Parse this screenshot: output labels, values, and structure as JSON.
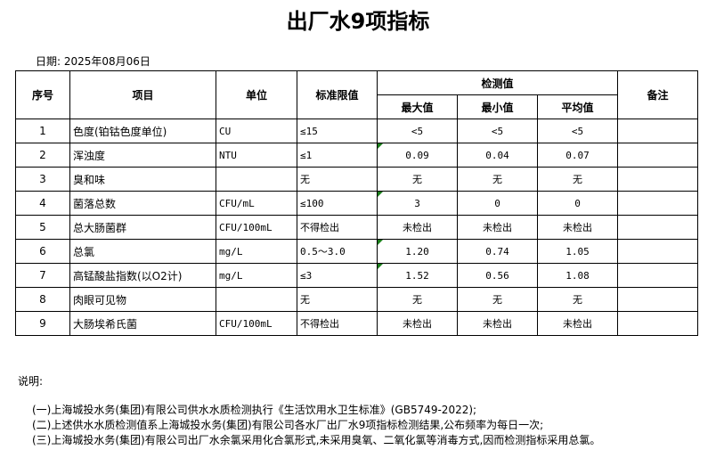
{
  "title": "出厂水9项指标",
  "date": "日期: 2025年08月06日",
  "headers": {
    "no": "序号",
    "item": "项目",
    "unit": "单位",
    "limit": "标准限值",
    "detect": "检测值",
    "max": "最大值",
    "min": "最小值",
    "avg": "平均值",
    "remark": "备注"
  },
  "rows": [
    {
      "no": "1",
      "item": "色度(铂钴色度单位)",
      "unit": "CU",
      "limit": "≤15",
      "max": "<5",
      "min": "<5",
      "avg": "<5",
      "flag": false
    },
    {
      "no": "2",
      "item": "浑浊度",
      "unit": "NTU",
      "limit": "≤1",
      "max": "0.09",
      "min": "0.04",
      "avg": "0.07",
      "flag": true
    },
    {
      "no": "3",
      "item": "臭和味",
      "unit": "",
      "limit": "无",
      "max": "无",
      "min": "无",
      "avg": "无",
      "flag": false
    },
    {
      "no": "4",
      "item": "菌落总数",
      "unit": "CFU/mL",
      "limit": "≤100",
      "max": "3",
      "min": "0",
      "avg": "0",
      "flag": true
    },
    {
      "no": "5",
      "item": "总大肠菌群",
      "unit": "CFU/100mL",
      "limit": "不得检出",
      "max": "未检出",
      "min": "未检出",
      "avg": "未检出",
      "flag": false
    },
    {
      "no": "6",
      "item": "总氯",
      "unit": "mg/L",
      "limit": "0.5～3.0",
      "max": "1.20",
      "min": "0.74",
      "avg": "1.05",
      "flag": true
    },
    {
      "no": "7",
      "item": "高锰酸盐指数(以O2计)",
      "unit": "mg/L",
      "limit": "≤3",
      "max": "1.52",
      "min": "0.56",
      "avg": "1.08",
      "flag": true
    },
    {
      "no": "8",
      "item": "肉眼可见物",
      "unit": "",
      "limit": "无",
      "max": "无",
      "min": "无",
      "avg": "无",
      "flag": false
    },
    {
      "no": "9",
      "item": "大肠埃希氏菌",
      "unit": "CFU/100mL",
      "limit": "不得检出",
      "max": "未检出",
      "min": "未检出",
      "avg": "未检出",
      "flag": false
    }
  ],
  "notes": {
    "label": "说明:",
    "lines": [
      "(一)上海城投水务(集团)有限公司供水水质检测执行《生活饮用水卫生标准》(GB5749-2022);",
      "(二)上述供水水质检测值系上海城投水务(集团)有限公司各水厂出厂水9项指标检测结果,公布频率为每日一次;",
      "(三)上海城投水务(集团)有限公司出厂水余氯采用化合氯形式,未采用臭氧、二氧化氯等消毒方式,因而检测指标采用总氯。"
    ]
  }
}
